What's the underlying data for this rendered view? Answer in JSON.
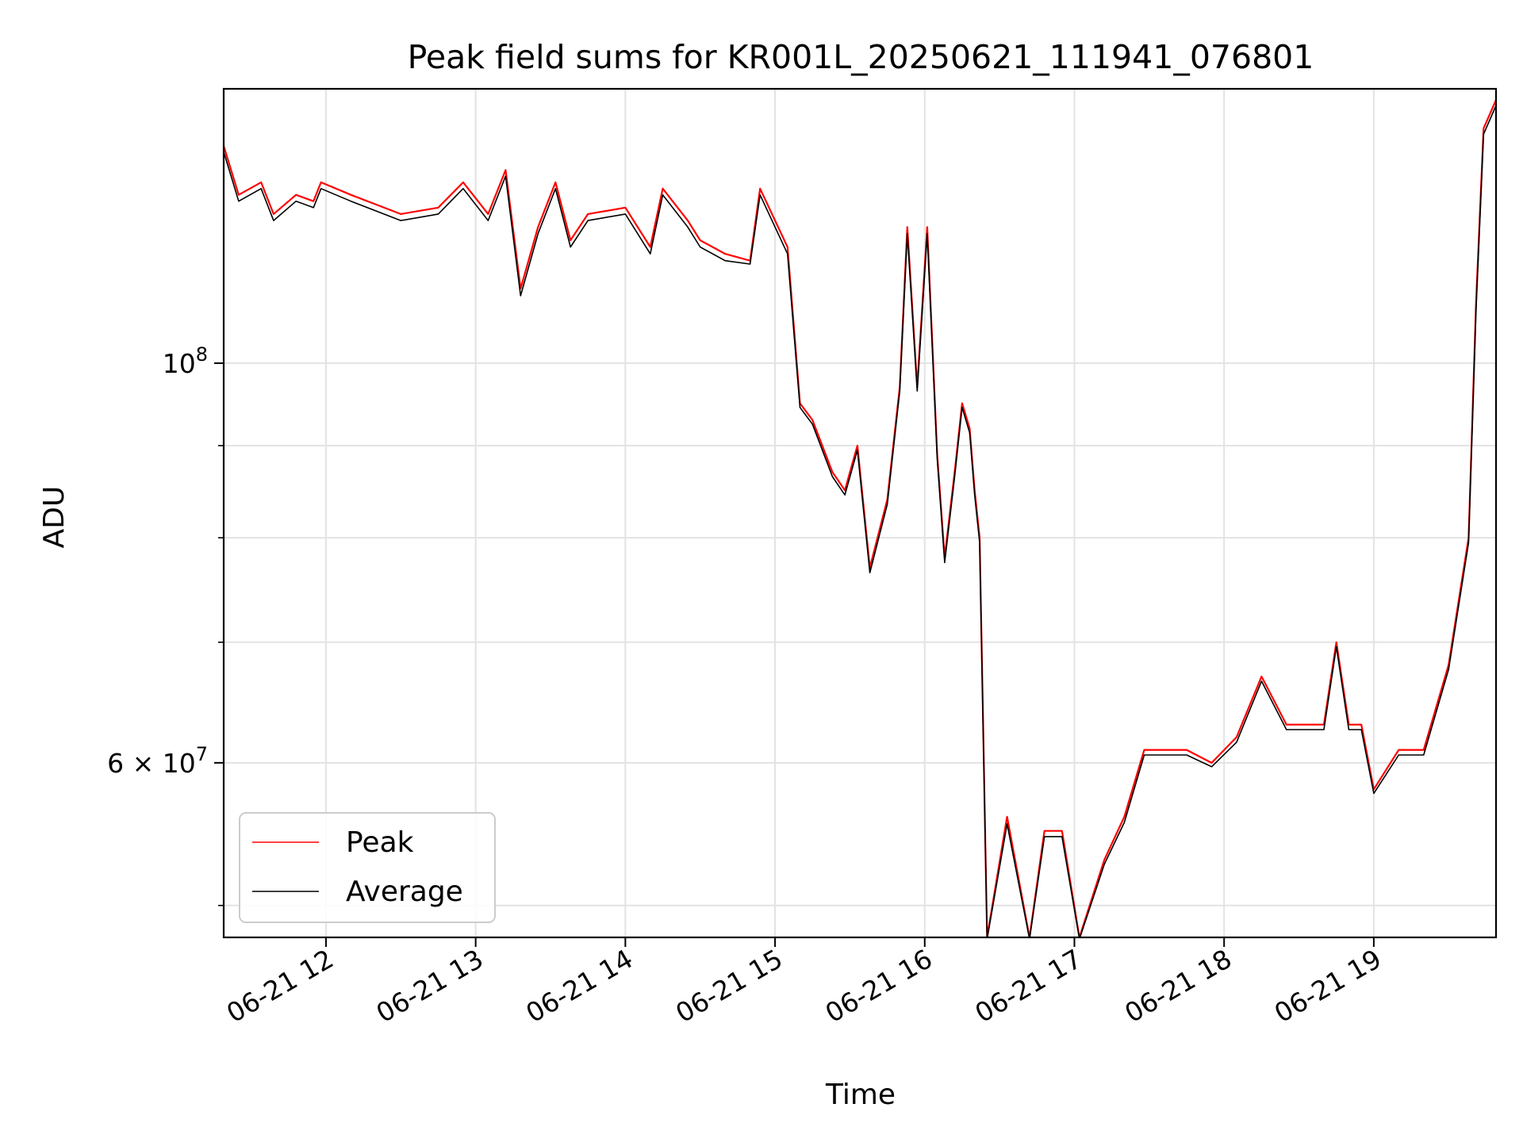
{
  "chart_data": {
    "type": "line",
    "title": "Peak field sums for KR001L_20250621_111941_076801",
    "xlabel": "Time",
    "ylabel": "ADU",
    "yscale": "log",
    "grid": true,
    "legend_position": "bottom-left",
    "xlim": [
      "2025-06-21 11:19",
      "2025-06-21 19:49"
    ],
    "ylim": [
      48000000,
      142000000
    ],
    "x_ticks": [
      {
        "value": "2025-06-21 12:00",
        "label": "06-21 12"
      },
      {
        "value": "2025-06-21 13:00",
        "label": "06-21 13"
      },
      {
        "value": "2025-06-21 14:00",
        "label": "06-21 14"
      },
      {
        "value": "2025-06-21 15:00",
        "label": "06-21 15"
      },
      {
        "value": "2025-06-21 16:00",
        "label": "06-21 16"
      },
      {
        "value": "2025-06-21 17:00",
        "label": "06-21 17"
      },
      {
        "value": "2025-06-21 18:00",
        "label": "06-21 18"
      },
      {
        "value": "2025-06-21 19:00",
        "label": "06-21 19"
      }
    ],
    "y_major_ticks": [
      {
        "value": 60000000,
        "base": "6 × 10",
        "exp": "7"
      },
      {
        "value": 100000000,
        "base": "10",
        "exp": "8"
      }
    ],
    "y_minor_ticks": [
      50000000,
      70000000,
      80000000,
      90000000
    ],
    "series": [
      {
        "name": "Peak",
        "color": "#ff0000",
        "x": [
          "2025-06-21 11:19",
          "2025-06-21 11:25",
          "2025-06-21 11:34",
          "2025-06-21 11:39",
          "2025-06-21 11:48",
          "2025-06-21 11:55",
          "2025-06-21 11:58",
          "2025-06-21 12:10",
          "2025-06-21 12:30",
          "2025-06-21 12:45",
          "2025-06-21 12:55",
          "2025-06-21 13:05",
          "2025-06-21 13:12",
          "2025-06-21 13:18",
          "2025-06-21 13:25",
          "2025-06-21 13:32",
          "2025-06-21 13:38",
          "2025-06-21 13:45",
          "2025-06-21 14:00",
          "2025-06-21 14:10",
          "2025-06-21 14:15",
          "2025-06-21 14:25",
          "2025-06-21 14:30",
          "2025-06-21 14:40",
          "2025-06-21 14:50",
          "2025-06-21 14:54",
          "2025-06-21 15:05",
          "2025-06-21 15:10",
          "2025-06-21 15:15",
          "2025-06-21 15:23",
          "2025-06-21 15:28",
          "2025-06-21 15:33",
          "2025-06-21 15:38",
          "2025-06-21 15:45",
          "2025-06-21 15:50",
          "2025-06-21 15:53",
          "2025-06-21 15:57",
          "2025-06-21 16:01",
          "2025-06-21 16:05",
          "2025-06-21 16:08",
          "2025-06-21 16:12",
          "2025-06-21 16:15",
          "2025-06-21 16:18",
          "2025-06-21 16:20",
          "2025-06-21 16:22",
          "2025-06-21 16:25",
          "2025-06-21 16:33",
          "2025-06-21 16:42",
          "2025-06-21 16:48",
          "2025-06-21 16:55",
          "2025-06-21 17:02",
          "2025-06-21 17:12",
          "2025-06-21 17:20",
          "2025-06-21 17:28",
          "2025-06-21 17:35",
          "2025-06-21 17:45",
          "2025-06-21 17:55",
          "2025-06-21 18:05",
          "2025-06-21 18:15",
          "2025-06-21 18:25",
          "2025-06-21 18:35",
          "2025-06-21 18:40",
          "2025-06-21 18:45",
          "2025-06-21 18:50",
          "2025-06-21 18:55",
          "2025-06-21 19:00",
          "2025-06-21 19:10",
          "2025-06-21 19:20",
          "2025-06-21 19:30",
          "2025-06-21 19:38",
          "2025-06-21 19:41",
          "2025-06-21 19:44",
          "2025-06-21 19:49"
        ],
        "y": [
          132000000,
          124000000,
          126000000,
          121000000,
          124000000,
          123000000,
          126000000,
          124000000,
          121000000,
          122000000,
          126000000,
          121000000,
          128000000,
          110000000,
          119000000,
          126000000,
          117000000,
          121000000,
          122000000,
          116000000,
          125000000,
          120000000,
          117000000,
          115000000,
          114000000,
          125000000,
          116000000,
          95000000,
          93000000,
          87000000,
          85000000,
          90000000,
          77000000,
          84000000,
          97000000,
          119000000,
          97000000,
          119000000,
          89000000,
          78000000,
          87000000,
          95000000,
          92000000,
          85000000,
          80000000,
          48000000,
          56000000,
          48000000,
          55000000,
          55000000,
          48000000,
          53000000,
          56000000,
          61000000,
          61000000,
          61000000,
          60000000,
          62000000,
          67000000,
          63000000,
          63000000,
          63000000,
          70000000,
          63000000,
          63000000,
          58000000,
          61000000,
          61000000,
          68000000,
          80000000,
          108000000,
          135000000,
          140000000
        ]
      },
      {
        "name": "Average",
        "color": "#000000",
        "x": [
          "2025-06-21 11:19",
          "2025-06-21 11:25",
          "2025-06-21 11:34",
          "2025-06-21 11:39",
          "2025-06-21 11:48",
          "2025-06-21 11:55",
          "2025-06-21 11:58",
          "2025-06-21 12:10",
          "2025-06-21 12:30",
          "2025-06-21 12:45",
          "2025-06-21 12:55",
          "2025-06-21 13:05",
          "2025-06-21 13:12",
          "2025-06-21 13:18",
          "2025-06-21 13:25",
          "2025-06-21 13:32",
          "2025-06-21 13:38",
          "2025-06-21 13:45",
          "2025-06-21 14:00",
          "2025-06-21 14:10",
          "2025-06-21 14:15",
          "2025-06-21 14:25",
          "2025-06-21 14:30",
          "2025-06-21 14:40",
          "2025-06-21 14:50",
          "2025-06-21 14:54",
          "2025-06-21 15:05",
          "2025-06-21 15:10",
          "2025-06-21 15:15",
          "2025-06-21 15:23",
          "2025-06-21 15:28",
          "2025-06-21 15:33",
          "2025-06-21 15:38",
          "2025-06-21 15:45",
          "2025-06-21 15:50",
          "2025-06-21 15:53",
          "2025-06-21 15:57",
          "2025-06-21 16:01",
          "2025-06-21 16:05",
          "2025-06-21 16:08",
          "2025-06-21 16:12",
          "2025-06-21 16:15",
          "2025-06-21 16:18",
          "2025-06-21 16:20",
          "2025-06-21 16:22",
          "2025-06-21 16:25",
          "2025-06-21 16:33",
          "2025-06-21 16:42",
          "2025-06-21 16:48",
          "2025-06-21 16:55",
          "2025-06-21 17:02",
          "2025-06-21 17:12",
          "2025-06-21 17:20",
          "2025-06-21 17:28",
          "2025-06-21 17:35",
          "2025-06-21 17:45",
          "2025-06-21 17:55",
          "2025-06-21 18:05",
          "2025-06-21 18:15",
          "2025-06-21 18:25",
          "2025-06-21 18:35",
          "2025-06-21 18:40",
          "2025-06-21 18:45",
          "2025-06-21 18:50",
          "2025-06-21 18:55",
          "2025-06-21 19:00",
          "2025-06-21 19:10",
          "2025-06-21 19:20",
          "2025-06-21 19:30",
          "2025-06-21 19:38",
          "2025-06-21 19:41",
          "2025-06-21 19:44",
          "2025-06-21 19:49"
        ],
        "y": [
          131000000,
          123000000,
          125000000,
          120000000,
          123000000,
          122000000,
          125000000,
          123000000,
          120000000,
          121000000,
          125000000,
          120000000,
          127000000,
          109000000,
          118000000,
          125000000,
          116000000,
          120000000,
          121000000,
          115000000,
          124000000,
          119000000,
          116000000,
          114000000,
          113500000,
          124000000,
          115000000,
          94500000,
          92500000,
          86500000,
          84500000,
          89500000,
          76500000,
          83500000,
          96500000,
          118000000,
          96500000,
          118000000,
          88500000,
          77500000,
          86500000,
          94500000,
          91500000,
          84500000,
          79500000,
          47900000,
          55500000,
          47900000,
          54600000,
          54600000,
          47900000,
          52700000,
          55600000,
          60600000,
          60600000,
          60600000,
          59700000,
          61600000,
          66600000,
          62600000,
          62600000,
          62600000,
          69600000,
          62600000,
          62600000,
          57700000,
          60600000,
          60600000,
          67600000,
          79500000,
          107000000,
          134000000,
          139000000
        ]
      }
    ]
  }
}
